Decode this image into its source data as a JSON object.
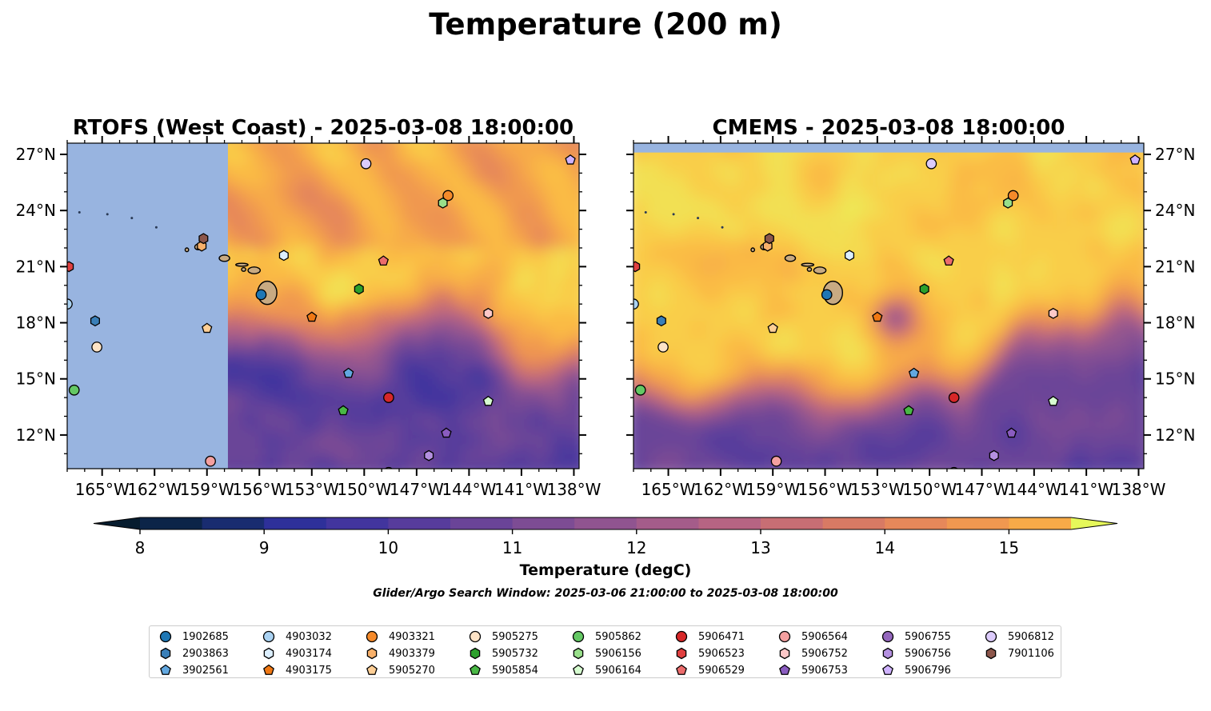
{
  "figure": {
    "suptitle": "Temperature (200 m)",
    "search_window": "Glider/Argo Search Window: 2025-03-06 21:00:00 to 2025-03-08 18:00:00"
  },
  "colors": {
    "land": "#c8aa82",
    "nodata": "#98b4e0",
    "ramp": [
      "#061c2e",
      "#0c2448",
      "#192c70",
      "#2e309a",
      "#42359e",
      "#573c9c",
      "#6a4498",
      "#7d4c94",
      "#905490",
      "#a45c8a",
      "#b66483",
      "#c86e74",
      "#d87a64",
      "#e6885a",
      "#f09850",
      "#f7aa48",
      "#fabb44",
      "#f9ce48",
      "#f2e052",
      "#e6f85a"
    ]
  },
  "chart_data": [
    {
      "type": "heatmap",
      "title": "RTOFS (West Coast) - 2025-03-08 18:00:00",
      "xlim": [
        -167,
        -137.7
      ],
      "ylim": [
        10.2,
        27.6
      ],
      "xticks": [
        -165,
        -162,
        -159,
        -156,
        -153,
        -150,
        -147,
        -144,
        -141,
        -138
      ],
      "xtick_labels": [
        "165°W",
        "162°W",
        "159°W",
        "156°W",
        "153°W",
        "150°W",
        "147°W",
        "144°W",
        "141°W",
        "138°W"
      ],
      "yticks": [
        12,
        15,
        18,
        21,
        24,
        27
      ],
      "ytick_labels": [
        "12°N",
        "15°N",
        "18°N",
        "21°N",
        "24°N",
        "27°N"
      ],
      "ytick_side": "left",
      "nodata_west_of": -157.8,
      "field_description": "warm (>15 degC) north of ~18N, cooling to 9-11 degC south of ~16N"
    },
    {
      "type": "heatmap",
      "title": "CMEMS - 2025-03-08 18:00:00",
      "xlim": [
        -167,
        -137.7
      ],
      "ylim": [
        10.2,
        27.6
      ],
      "xticks": [
        -165,
        -162,
        -159,
        -156,
        -153,
        -150,
        -147,
        -144,
        -141,
        -138
      ],
      "xtick_labels": [
        "165°W",
        "162°W",
        "159°W",
        "156°W",
        "153°W",
        "150°W",
        "147°W",
        "144°W",
        "141°W",
        "138°W"
      ],
      "yticks": [
        12,
        15,
        18,
        21,
        24,
        27
      ],
      "ytick_labels": [
        "12°N",
        "15°N",
        "18°N",
        "21°N",
        "24°N",
        "27°N"
      ],
      "ytick_side": "right",
      "nodata_north_of": 27.1,
      "field_description": "warm (>15 degC) north of ~14N, cooling to 9-11 degC in the south and east, cold eddy near 152W 18N"
    }
  ],
  "colorbar": {
    "label": "Temperature (degC)",
    "min": 8,
    "max": 15.5,
    "step": 0.5,
    "ticks": [
      8,
      9,
      10,
      11,
      12,
      13,
      14,
      15
    ],
    "tick_labels": [
      "8",
      "9",
      "10",
      "11",
      "12",
      "13",
      "14",
      "15"
    ],
    "extend": "both"
  },
  "floats": [
    {
      "id": "1902685",
      "marker": "circle",
      "color": "#1f77b4",
      "lon": -155.9,
      "lat": 19.5
    },
    {
      "id": "2903863",
      "marker": "hexagon",
      "color": "#3a7fb8",
      "lon": -165.4,
      "lat": 18.1
    },
    {
      "id": "3902561",
      "marker": "pentagon",
      "color": "#62a8e0",
      "lon": -150.9,
      "lat": 15.3
    },
    {
      "id": "4903032",
      "marker": "circle",
      "color": "#aad2f2",
      "lon": -167.0,
      "lat": 19.0
    },
    {
      "id": "4903174",
      "marker": "hexagon",
      "color": "#dcefff",
      "lon": -154.6,
      "lat": 21.6
    },
    {
      "id": "4903175",
      "marker": "pentagon",
      "color": "#f07814",
      "lon": -153.0,
      "lat": 18.3
    },
    {
      "id": "4903321",
      "marker": "circle",
      "color": "#f58a2a",
      "lon": -145.2,
      "lat": 24.8
    },
    {
      "id": "4903379",
      "marker": "hexagon",
      "color": "#f7b06a",
      "lon": -159.3,
      "lat": 22.1
    },
    {
      "id": "5905270",
      "marker": "pentagon",
      "color": "#ffcf96",
      "lon": -159.0,
      "lat": 17.7
    },
    {
      "id": "5905275",
      "marker": "circle",
      "color": "#fde3c6",
      "lon": -165.3,
      "lat": 16.7
    },
    {
      "id": "5905732",
      "marker": "hexagon",
      "color": "#2ca02c",
      "lon": -150.3,
      "lat": 19.8
    },
    {
      "id": "5905854",
      "marker": "pentagon",
      "color": "#49b845",
      "lon": -151.2,
      "lat": 13.3
    },
    {
      "id": "5905862",
      "marker": "circle",
      "color": "#64c864",
      "lon": -166.6,
      "lat": 14.4
    },
    {
      "id": "5906156",
      "marker": "hexagon",
      "color": "#98df8a",
      "lon": -145.5,
      "lat": 24.4
    },
    {
      "id": "5906164",
      "marker": "pentagon",
      "color": "#d6fcd0",
      "lon": -142.9,
      "lat": 13.8
    },
    {
      "id": "5906471",
      "marker": "circle",
      "color": "#d62728",
      "lon": -148.6,
      "lat": 14.0
    },
    {
      "id": "5906523",
      "marker": "hexagon",
      "color": "#e04040",
      "lon": -166.9,
      "lat": 21.0
    },
    {
      "id": "5906529",
      "marker": "pentagon",
      "color": "#ec6c6c",
      "lon": -148.9,
      "lat": 21.3
    },
    {
      "id": "5906564",
      "marker": "circle",
      "color": "#f4a0a0",
      "lon": -158.8,
      "lat": 10.6
    },
    {
      "id": "5906752",
      "marker": "hexagon",
      "color": "#fcc8c8",
      "lon": -142.9,
      "lat": 18.5
    },
    {
      "id": "5906753",
      "marker": "pentagon",
      "color": "#8a5cc0",
      "lon": -145.3,
      "lat": 12.1
    },
    {
      "id": "5906755",
      "marker": "circle",
      "color": "#9467bd",
      "lon": -148.6,
      "lat": 10.0
    },
    {
      "id": "5906756",
      "marker": "hexagon",
      "color": "#b490e0",
      "lon": -146.3,
      "lat": 10.9
    },
    {
      "id": "5906796",
      "marker": "pentagon",
      "color": "#cfb2ff",
      "lon": -138.2,
      "lat": 26.7
    },
    {
      "id": "5906812",
      "marker": "circle",
      "color": "#dccbfb",
      "lon": -149.9,
      "lat": 26.5
    },
    {
      "id": "7901106",
      "marker": "hexagon",
      "color": "#8c564b",
      "lon": -159.2,
      "lat": 22.5
    }
  ]
}
